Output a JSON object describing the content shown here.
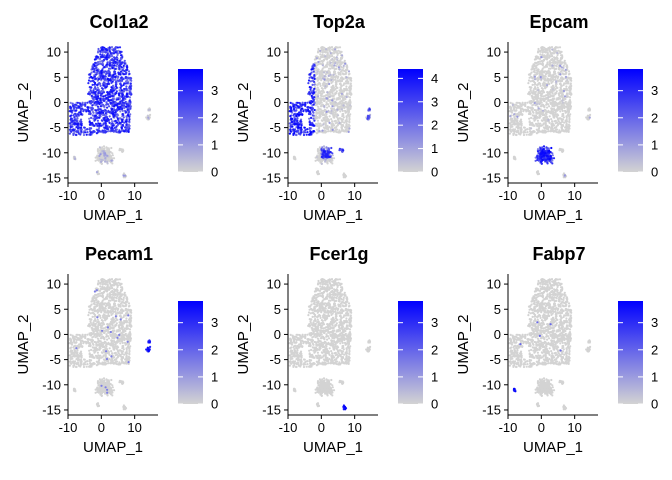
{
  "chart_data": [
    {
      "type": "scatter",
      "title": "Col1a2",
      "xlabel": "UMAP_1",
      "ylabel": "UMAP_2",
      "xlim": [
        -10,
        17
      ],
      "ylim": [
        -16,
        12
      ],
      "xticks": [
        -10,
        0,
        10
      ],
      "yticks": [
        -15,
        -10,
        -5,
        0,
        5,
        10
      ],
      "legend": {
        "position": "right",
        "min": 0,
        "max": 3.8,
        "ticks": [
          0,
          1,
          2,
          3
        ],
        "low_color": "#d3d3d3",
        "high_color": "#0000ff"
      },
      "expression_pattern": "high across the large upper cluster (UMAP_2 > -6), low elsewhere"
    },
    {
      "type": "scatter",
      "title": "Top2a",
      "xlabel": "UMAP_1",
      "ylabel": "UMAP_2",
      "xlim": [
        -10,
        17
      ],
      "ylim": [
        -16,
        12
      ],
      "xticks": [
        -10,
        0,
        10
      ],
      "yticks": [
        -15,
        -10,
        -5,
        0,
        5,
        10
      ],
      "legend": {
        "position": "right",
        "min": 0,
        "max": 4.4,
        "ticks": [
          0,
          1,
          2,
          3,
          4
        ],
        "low_color": "#d3d3d3",
        "high_color": "#0000ff"
      },
      "expression_pattern": "high on the left edge of the upper cluster and in parts of the lower clusters"
    },
    {
      "type": "scatter",
      "title": "Epcam",
      "xlabel": "UMAP_1",
      "ylabel": "UMAP_2",
      "xlim": [
        -10,
        17
      ],
      "ylim": [
        -16,
        12
      ],
      "xticks": [
        -10,
        0,
        10
      ],
      "yticks": [
        -15,
        -10,
        -5,
        0,
        5,
        10
      ],
      "legend": {
        "position": "right",
        "min": 0,
        "max": 3.8,
        "ticks": [
          0,
          1,
          2,
          3
        ],
        "low_color": "#d3d3d3",
        "high_color": "#0000ff"
      },
      "expression_pattern": "high in the lower central cluster (UMAP_2 -13 to -8)"
    },
    {
      "type": "scatter",
      "title": "Pecam1",
      "xlabel": "UMAP_1",
      "ylabel": "UMAP_2",
      "xlim": [
        -10,
        17
      ],
      "ylim": [
        -16,
        12
      ],
      "xticks": [
        -10,
        0,
        10
      ],
      "yticks": [
        -15,
        -10,
        -5,
        0,
        5,
        10
      ],
      "legend": {
        "position": "right",
        "min": 0,
        "max": 3.8,
        "ticks": [
          0,
          1,
          2,
          3
        ],
        "low_color": "#d3d3d3",
        "high_color": "#0000ff"
      },
      "expression_pattern": "high in the small cluster near UMAP_1 14, UMAP_2 -3"
    },
    {
      "type": "scatter",
      "title": "Fcer1g",
      "xlabel": "UMAP_1",
      "ylabel": "UMAP_2",
      "xlim": [
        -10,
        17
      ],
      "ylim": [
        -16,
        12
      ],
      "xticks": [
        -10,
        0,
        10
      ],
      "yticks": [
        -15,
        -10,
        -5,
        0,
        5,
        10
      ],
      "legend": {
        "position": "right",
        "min": 0,
        "max": 3.8,
        "ticks": [
          0,
          1,
          2,
          3
        ],
        "low_color": "#d3d3d3",
        "high_color": "#0000ff"
      },
      "expression_pattern": "high in the small cluster near UMAP_1 7, UMAP_2 -14"
    },
    {
      "type": "scatter",
      "title": "Fabp7",
      "xlabel": "UMAP_1",
      "ylabel": "UMAP_2",
      "xlim": [
        -10,
        17
      ],
      "ylim": [
        -16,
        12
      ],
      "xticks": [
        -10,
        0,
        10
      ],
      "yticks": [
        -15,
        -10,
        -5,
        0,
        5,
        10
      ],
      "legend": {
        "position": "right",
        "min": 0,
        "max": 3.8,
        "ticks": [
          0,
          1,
          2,
          3
        ],
        "low_color": "#d3d3d3",
        "high_color": "#0000ff"
      },
      "expression_pattern": "high in the small cluster near UMAP_1 -8, UMAP_2 -11"
    }
  ]
}
